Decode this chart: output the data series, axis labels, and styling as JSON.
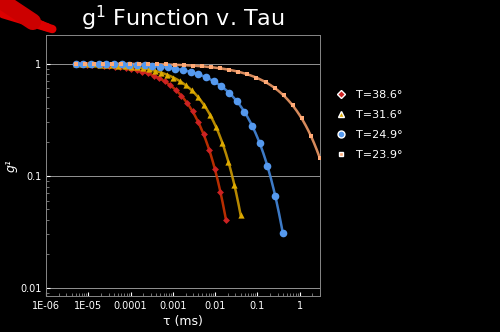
{
  "title": "g$^1$ Function v. Tau",
  "xlabel": "τ (ms)",
  "ylabel": "g¹",
  "background_color": "#000000",
  "axis_bg_color": "#000000",
  "text_color": "#ffffff",
  "xlim": [
    1e-06,
    3.0
  ],
  "ylim": [
    0.0085,
    1.8
  ],
  "series": [
    {
      "label": "T=38.6°",
      "color": "#cc2222",
      "curve_color": "#cc3300",
      "marker": "D",
      "markersize": 3.5,
      "tau_c": 0.003,
      "beta": 0.65,
      "tau_start": 5e-06,
      "tau_end": 0.018
    },
    {
      "label": "T=31.6°",
      "color": "#ddaa00",
      "curve_color": "#cc9900",
      "marker": "^",
      "markersize": 4.5,
      "tau_c": 0.007,
      "beta": 0.65,
      "tau_start": 5e-06,
      "tau_end": 0.04
    },
    {
      "label": "T=24.9°",
      "color": "#5599ee",
      "curve_color": "#4488dd",
      "marker": "o",
      "markersize": 5.5,
      "tau_c": 0.05,
      "beta": 0.6,
      "tau_start": 5e-06,
      "tau_end": 0.4
    },
    {
      "label": "T=23.9°",
      "color": "#ffaa77",
      "curve_color": "#ee9966",
      "marker": "s",
      "markersize": 2.5,
      "tau_c": 0.9,
      "beta": 0.55,
      "tau_start": 5e-06,
      "tau_end": 3.0
    }
  ],
  "hline_vals": [
    1.0,
    0.1,
    0.01
  ],
  "title_fontsize": 16,
  "axis_label_fontsize": 9,
  "tick_fontsize": 7,
  "legend_fontsize": 8
}
